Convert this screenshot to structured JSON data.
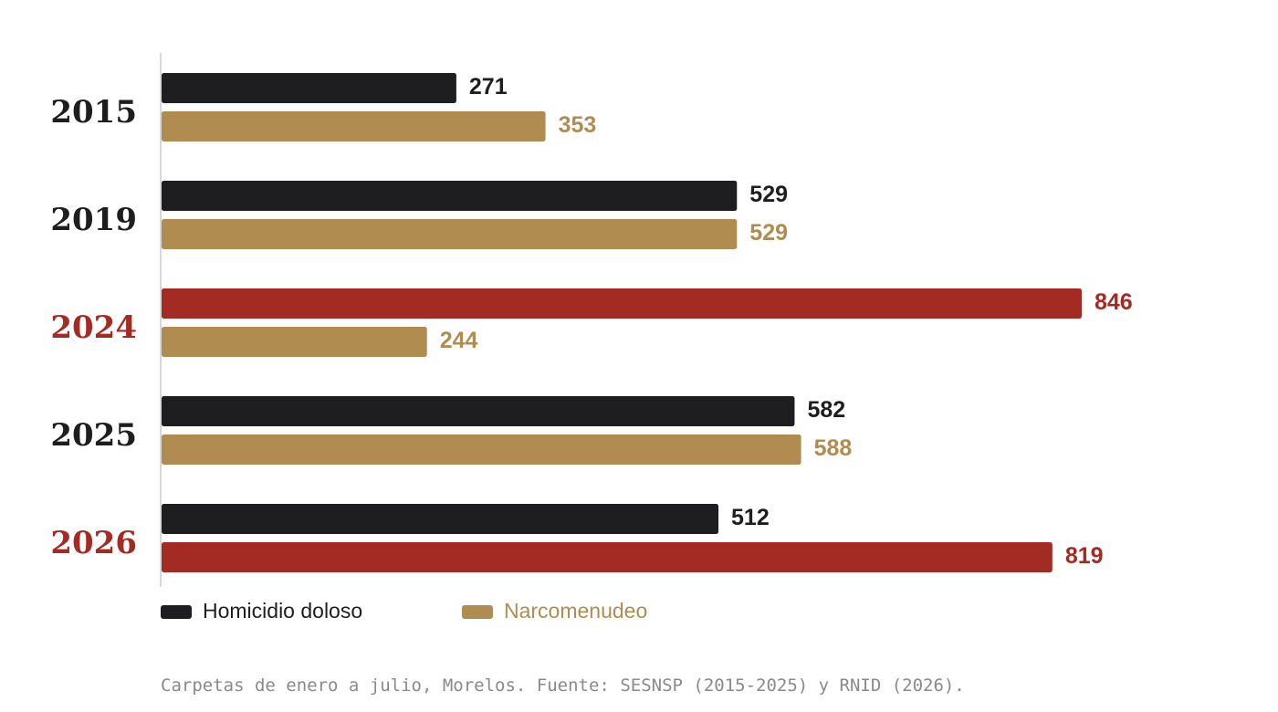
{
  "chart_data": {
    "type": "bar",
    "orientation": "horizontal",
    "categories": [
      "2015",
      "2019",
      "2024",
      "2025",
      "2026"
    ],
    "highlighted_categories": [
      "2024",
      "2026"
    ],
    "series": [
      {
        "name": "Homicidio doloso",
        "values": [
          271,
          529,
          846,
          582,
          512
        ]
      },
      {
        "name": "Narcomenudeo",
        "values": [
          353,
          529,
          244,
          588,
          819
        ]
      }
    ],
    "highlighted_values": [
      {
        "category": "2024",
        "series": "Homicidio doloso"
      },
      {
        "category": "2026",
        "series": "Narcomenudeo"
      }
    ],
    "xlim": [
      0,
      846
    ],
    "grid": false,
    "legend_position": "bottom-left"
  },
  "colors": {
    "homicidio": "#1e1e20",
    "narcomenudeo": "#b08c51",
    "highlight": "#a42b24",
    "axis": "#cccccc",
    "note": "#8a8a8a"
  },
  "legend": {
    "homicidio_label": "Homicidio doloso",
    "narcomenudeo_label": "Narcomenudeo"
  },
  "source_note": "Carpetas de enero a julio, Morelos. Fuente: SESNSP (2015-2025) y RNID (2026)."
}
